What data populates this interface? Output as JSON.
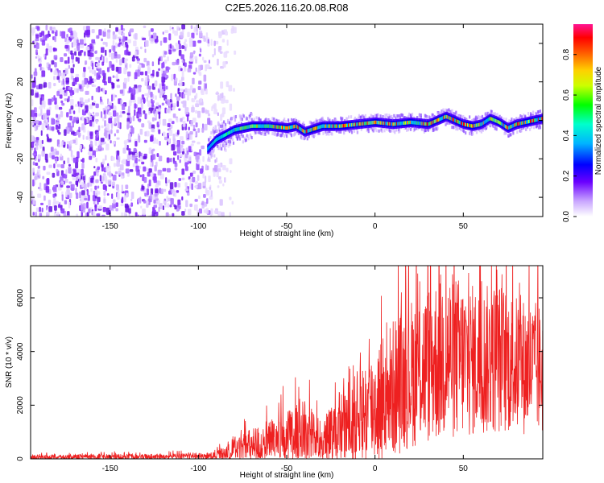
{
  "title": "C2E5.2026.116.20.08.R08",
  "colors": {
    "snr_line": "#ee2020",
    "axis": "#000000",
    "background": "#ffffff",
    "colormap": [
      "#ffffff",
      "#d6b6ff",
      "#8a2be2",
      "#1010ff",
      "#00c8ff",
      "#00ff7f",
      "#ffff00",
      "#ff7f00",
      "#ff0000",
      "#ff1493"
    ]
  },
  "chart_data": [
    {
      "type": "heatmap",
      "xlabel": "Height of straight line (km)",
      "ylabel": "Frequency (Hz)",
      "xlim": [
        -195,
        95
      ],
      "ylim": [
        -50,
        50
      ],
      "xticks": [
        -150,
        -100,
        -50,
        0,
        50
      ],
      "yticks": [
        -40,
        -20,
        0,
        20,
        40
      ],
      "noise_region_x": [
        -195,
        -82
      ],
      "signal_track": {
        "x": [
          -95,
          -90,
          -80,
          -70,
          -60,
          -50,
          -45,
          -40,
          -30,
          -20,
          -10,
          0,
          10,
          20,
          30,
          40,
          50,
          55,
          60,
          65,
          70,
          75,
          80,
          90,
          95
        ],
        "freq": [
          -15,
          -10,
          -5,
          -3,
          -3,
          -4,
          -3,
          -6,
          -3,
          -3,
          -2,
          -1,
          -2,
          -1,
          -2,
          2,
          -2,
          -3,
          -2,
          1,
          -1,
          -4,
          -2,
          0,
          1
        ]
      },
      "colorbar": {
        "label": "Normalized spectral amplitude",
        "range": [
          0.0,
          0.95
        ],
        "ticks": [
          "0.0",
          "0.2",
          "0.4",
          "0.6",
          "0.8"
        ]
      }
    },
    {
      "type": "line",
      "series_name": "SNR",
      "xlabel": "Height of straight line (km)",
      "ylabel": "SNR (10 * v/v)",
      "xlim": [
        -195,
        95
      ],
      "ylim": [
        0,
        7200
      ],
      "xticks": [
        -150,
        -100,
        -50,
        0,
        50
      ],
      "yticks": [
        0,
        2000,
        4000,
        6000
      ],
      "envelope": {
        "x": [
          -195,
          -100,
          -90,
          -80,
          -70,
          -60,
          -50,
          -40,
          -30,
          -20,
          -10,
          0,
          10,
          20,
          30,
          40,
          50,
          60,
          70,
          80,
          95
        ],
        "mean": [
          60,
          90,
          120,
          300,
          450,
          550,
          700,
          900,
          600,
          1100,
          1500,
          2000,
          2600,
          3200,
          3500,
          3900,
          3700,
          3600,
          3800,
          3500,
          3300
        ],
        "spread": [
          90,
          120,
          170,
          500,
          700,
          900,
          1100,
          1300,
          800,
          1500,
          1800,
          2200,
          2600,
          2800,
          3000,
          3300,
          3000,
          2800,
          2900,
          2600,
          2500
        ]
      }
    }
  ]
}
